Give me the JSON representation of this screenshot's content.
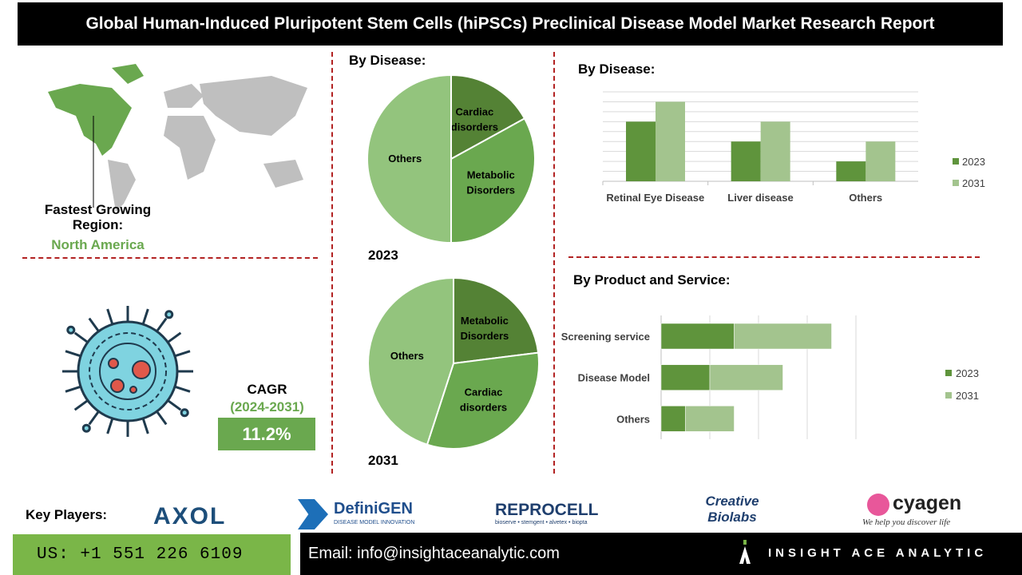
{
  "title": "Global Human-Induced Pluripotent Stem Cells (hiPSCs) Preclinical Disease Model Market Research Report",
  "region": {
    "label": "Fastest Growing Region:",
    "value": "North America"
  },
  "cagr": {
    "label": "CAGR",
    "period": "(2024-2031)",
    "value": "11.2%"
  },
  "colors": {
    "dark_green": "#5f943c",
    "mid_green": "#6aa84f",
    "light_green": "#a3c48e",
    "pie_light": "#93c47d",
    "pie_mid": "#6aa84f",
    "pie_dark": "#548235"
  },
  "chart_data": [
    {
      "type": "pie",
      "title": "By Disease:",
      "caption": "2023",
      "slices": [
        {
          "label": "Cardiac disorders",
          "value": 17
        },
        {
          "label": "Metabolic Disorders",
          "value": 33
        },
        {
          "label": "Others",
          "value": 50
        }
      ]
    },
    {
      "type": "pie",
      "caption": "2031",
      "slices": [
        {
          "label": "Metabolic Disorders",
          "value": 23
        },
        {
          "label": "Cardiac disorders",
          "value": 32
        },
        {
          "label": "Others",
          "value": 45
        }
      ]
    },
    {
      "type": "bar",
      "title": "By  Disease:",
      "categories": [
        "Retinal Eye Disease",
        "Liver disease",
        "Others"
      ],
      "series": [
        {
          "name": "2023",
          "values": [
            6,
            4,
            2
          ]
        },
        {
          "name": "2031",
          "values": [
            8,
            6,
            4
          ]
        }
      ],
      "ylim": [
        0,
        9
      ],
      "grid": true,
      "legend": "right"
    },
    {
      "type": "bar",
      "orientation": "horizontal",
      "stacked": true,
      "title": "By Product and Service:",
      "categories": [
        "Screening service",
        "Disease Model",
        "Others"
      ],
      "series": [
        {
          "name": "2023",
          "values": [
            1.5,
            1,
            0.5
          ]
        },
        {
          "name": "2031",
          "values": [
            2,
            1.5,
            1
          ]
        }
      ],
      "xlim": [
        0,
        4
      ],
      "grid": true,
      "legend": "right"
    }
  ],
  "key_players": {
    "label": "Key Players:",
    "logos": [
      "AXOL",
      "DefiniGEN",
      "DISEASE MODEL INNOVATION",
      "REPROCELL",
      "bioserve • stemgent • alvetex • biopta",
      "Creative",
      "Biolabs",
      "cyagen",
      "We help you discover life"
    ]
  },
  "footer": {
    "phone": "US: +1 551 226 6109",
    "email": "Email: info@insightaceanalytic.com",
    "brand": "INSIGHT ACE ANALYTIC"
  }
}
